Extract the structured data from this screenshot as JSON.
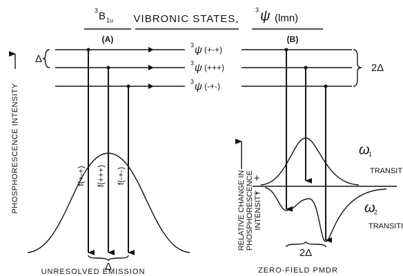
{
  "header": {
    "state": {
      "sup": "3",
      "main": "B",
      "sub": "1u"
    },
    "middle": "VIBRONIC STATES,",
    "psi": {
      "sup": "3",
      "main": "ψ",
      "rest": "(lmn)"
    }
  },
  "panel_a": {
    "label": "(A)",
    "spacing": "Δ",
    "y_axis": "PHOSPHORESCENCE INTENSITY",
    "arrows": [
      "f(+-+)",
      "f(+++)",
      "f(-+-)"
    ],
    "bottom_spacing": "Δ",
    "caption": "UNRESOLVED EMISSION"
  },
  "levels": [
    {
      "sup": "3",
      "main": "ψ",
      "rest": "(+-+)"
    },
    {
      "sup": "3",
      "main": "ψ",
      "rest": "(+++)"
    },
    {
      "sup": "3",
      "main": "ψ",
      "rest": "(-+-)"
    }
  ],
  "panel_b": {
    "label": "(B)",
    "spacing": "2Δ",
    "y_axis": [
      "RELATIVE CHANGE IN",
      "PHOSPHORESCENCE",
      "INTENSITY"
    ],
    "plus": "+",
    "minus": "−",
    "w1": {
      "symbol": "ω",
      "sub": "1",
      "text": "TRANSITION"
    },
    "w2": {
      "symbol": "ω",
      "sub": "2",
      "text": "TRANSITION"
    },
    "bottom_spacing": "2Δ",
    "caption": "ZERO-FIELD PMDR"
  }
}
